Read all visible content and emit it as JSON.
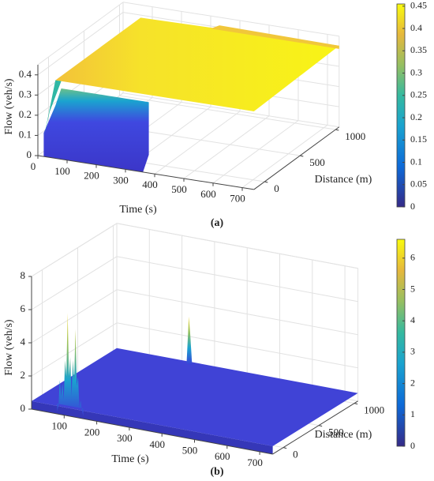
{
  "chart_data": [
    {
      "type": "surface",
      "caption": "(a)",
      "xlabel": "Time (s)",
      "ylabel": "Distance (m)",
      "zlabel": "Flow (veh/s)",
      "xlim": [
        0,
        740
      ],
      "xticks": [
        0,
        100,
        200,
        300,
        400,
        500,
        600,
        700
      ],
      "ylim": [
        -150,
        1050
      ],
      "yticks": [
        0,
        500,
        1000
      ],
      "zlim": [
        0,
        0.45
      ],
      "zticks": [
        0,
        0.1,
        0.2,
        0.3,
        0.4
      ],
      "clim": [
        0,
        0.455
      ],
      "cticks": [
        0,
        0.05,
        0.1,
        0.15,
        0.2,
        0.25,
        0.3,
        0.35,
        0.4,
        0.45
      ],
      "grid": true
    },
    {
      "type": "surface",
      "caption": "(b)",
      "xlabel": "Time (s)",
      "ylabel": "Distance (m)",
      "zlabel": "Flow (veh/s)",
      "xlim": [
        0,
        740
      ],
      "xticks": [
        100,
        200,
        300,
        400,
        500,
        600,
        700
      ],
      "ylim": [
        -150,
        1050
      ],
      "yticks": [
        0,
        500,
        1000
      ],
      "zlim": [
        0,
        8
      ],
      "zticks": [
        0,
        2,
        4,
        6,
        8
      ],
      "clim": [
        0,
        6.6
      ],
      "cticks": [
        0,
        1,
        2,
        3,
        4,
        5,
        6
      ],
      "grid": true
    }
  ]
}
